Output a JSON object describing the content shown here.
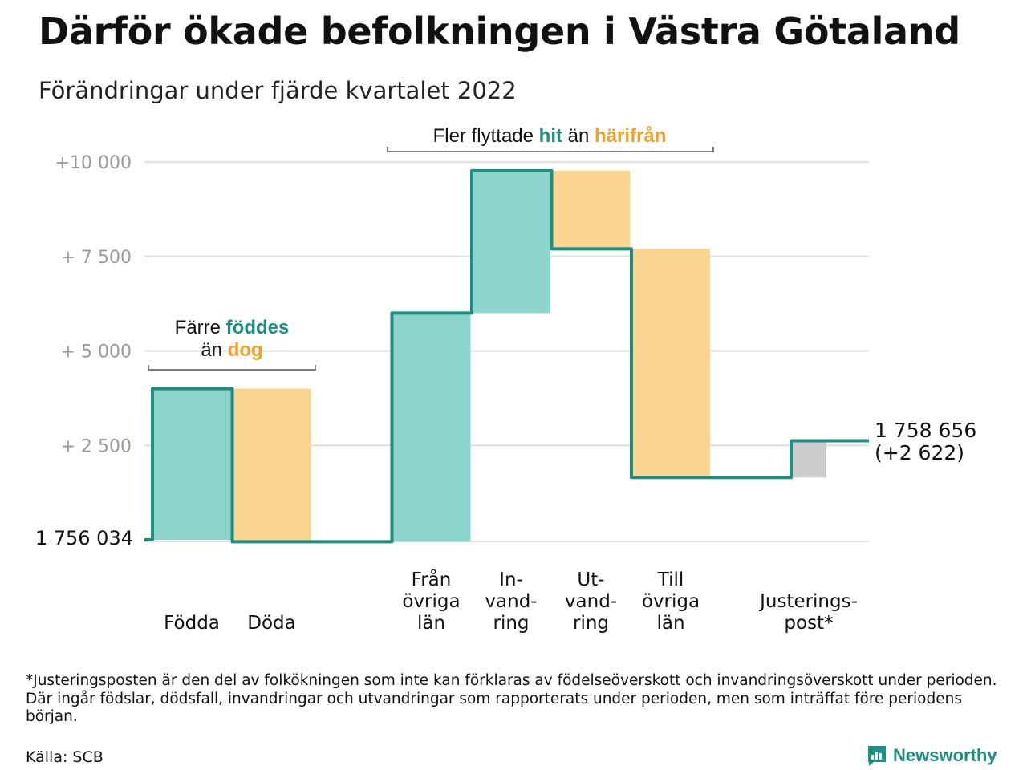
{
  "title": "Därför ökade befolkningen i Västra Götaland",
  "subtitle": "Förändringar under fjärde kvartalet 2022",
  "annotations": {
    "births_deaths": {
      "line1_pre": "Färre ",
      "line1_hit": "föddes",
      "line2_pre": "än ",
      "line2_hit": "dog"
    },
    "migration": {
      "pre": "Fler flyttade ",
      "hit": "hit",
      "mid": " än ",
      "hit2": "härifrån"
    }
  },
  "start_label": "1 756 034",
  "end_label": {
    "total": "1 758 656",
    "change": "(+2 622)"
  },
  "footnote": "*Justeringsposten är den del av folkökningen som inte kan förklaras av födelseöverskott och invandringsöverskott under perioden. Där ingår födslar, dödsfall, invandringar och utvandringar som rapporterats under perioden, men som inträffat före periodens början.",
  "source": "Källa: SCB",
  "brand": "Newsworthy",
  "colors": {
    "increase": "#8dd5cc",
    "decrease": "#f9d58f",
    "adjustment": "#cccccc",
    "line": "#1c8f80",
    "grid": "#e3e3e3",
    "tick": "#9a9a9a",
    "accent_teal": "#1c8f80",
    "accent_orange": "#f0a32a"
  },
  "chart_data": {
    "type": "waterfall",
    "baseline": 1756034,
    "ylim": [
      0,
      10000
    ],
    "yticks": [
      {
        "value": 2500,
        "label": "+ 2 500"
      },
      {
        "value": 5000,
        "label": "+ 5 000"
      },
      {
        "value": 7500,
        "label": "+ 7 500"
      },
      {
        "value": 10000,
        "label": "+10 000"
      }
    ],
    "steps": [
      {
        "label": [
          "Födda"
        ],
        "start": 0,
        "end": 4000,
        "kind": "increase"
      },
      {
        "label": [
          "Döda"
        ],
        "start": 4000,
        "end": -50,
        "kind": "decrease"
      },
      {
        "label": [],
        "start": -50,
        "end": -50,
        "kind": "gap"
      },
      {
        "label": [
          "Från",
          "övriga",
          "län"
        ],
        "start": -50,
        "end": 6000,
        "kind": "increase"
      },
      {
        "label": [
          "In-",
          "vand-",
          "ring"
        ],
        "start": 6000,
        "end": 9770,
        "kind": "increase"
      },
      {
        "label": [
          "Ut-",
          "vand-",
          "ring"
        ],
        "start": 9770,
        "end": 7700,
        "kind": "decrease"
      },
      {
        "label": [
          "Till",
          "övriga",
          "län"
        ],
        "start": 7700,
        "end": 1650,
        "kind": "decrease"
      },
      {
        "label": [],
        "start": 1650,
        "end": 1650,
        "kind": "gap"
      },
      {
        "label": [
          "Justerings-",
          "post*"
        ],
        "start": 1650,
        "end": 2622,
        "kind": "adjustment"
      }
    ],
    "total_change": 2622,
    "total": 1758656
  }
}
